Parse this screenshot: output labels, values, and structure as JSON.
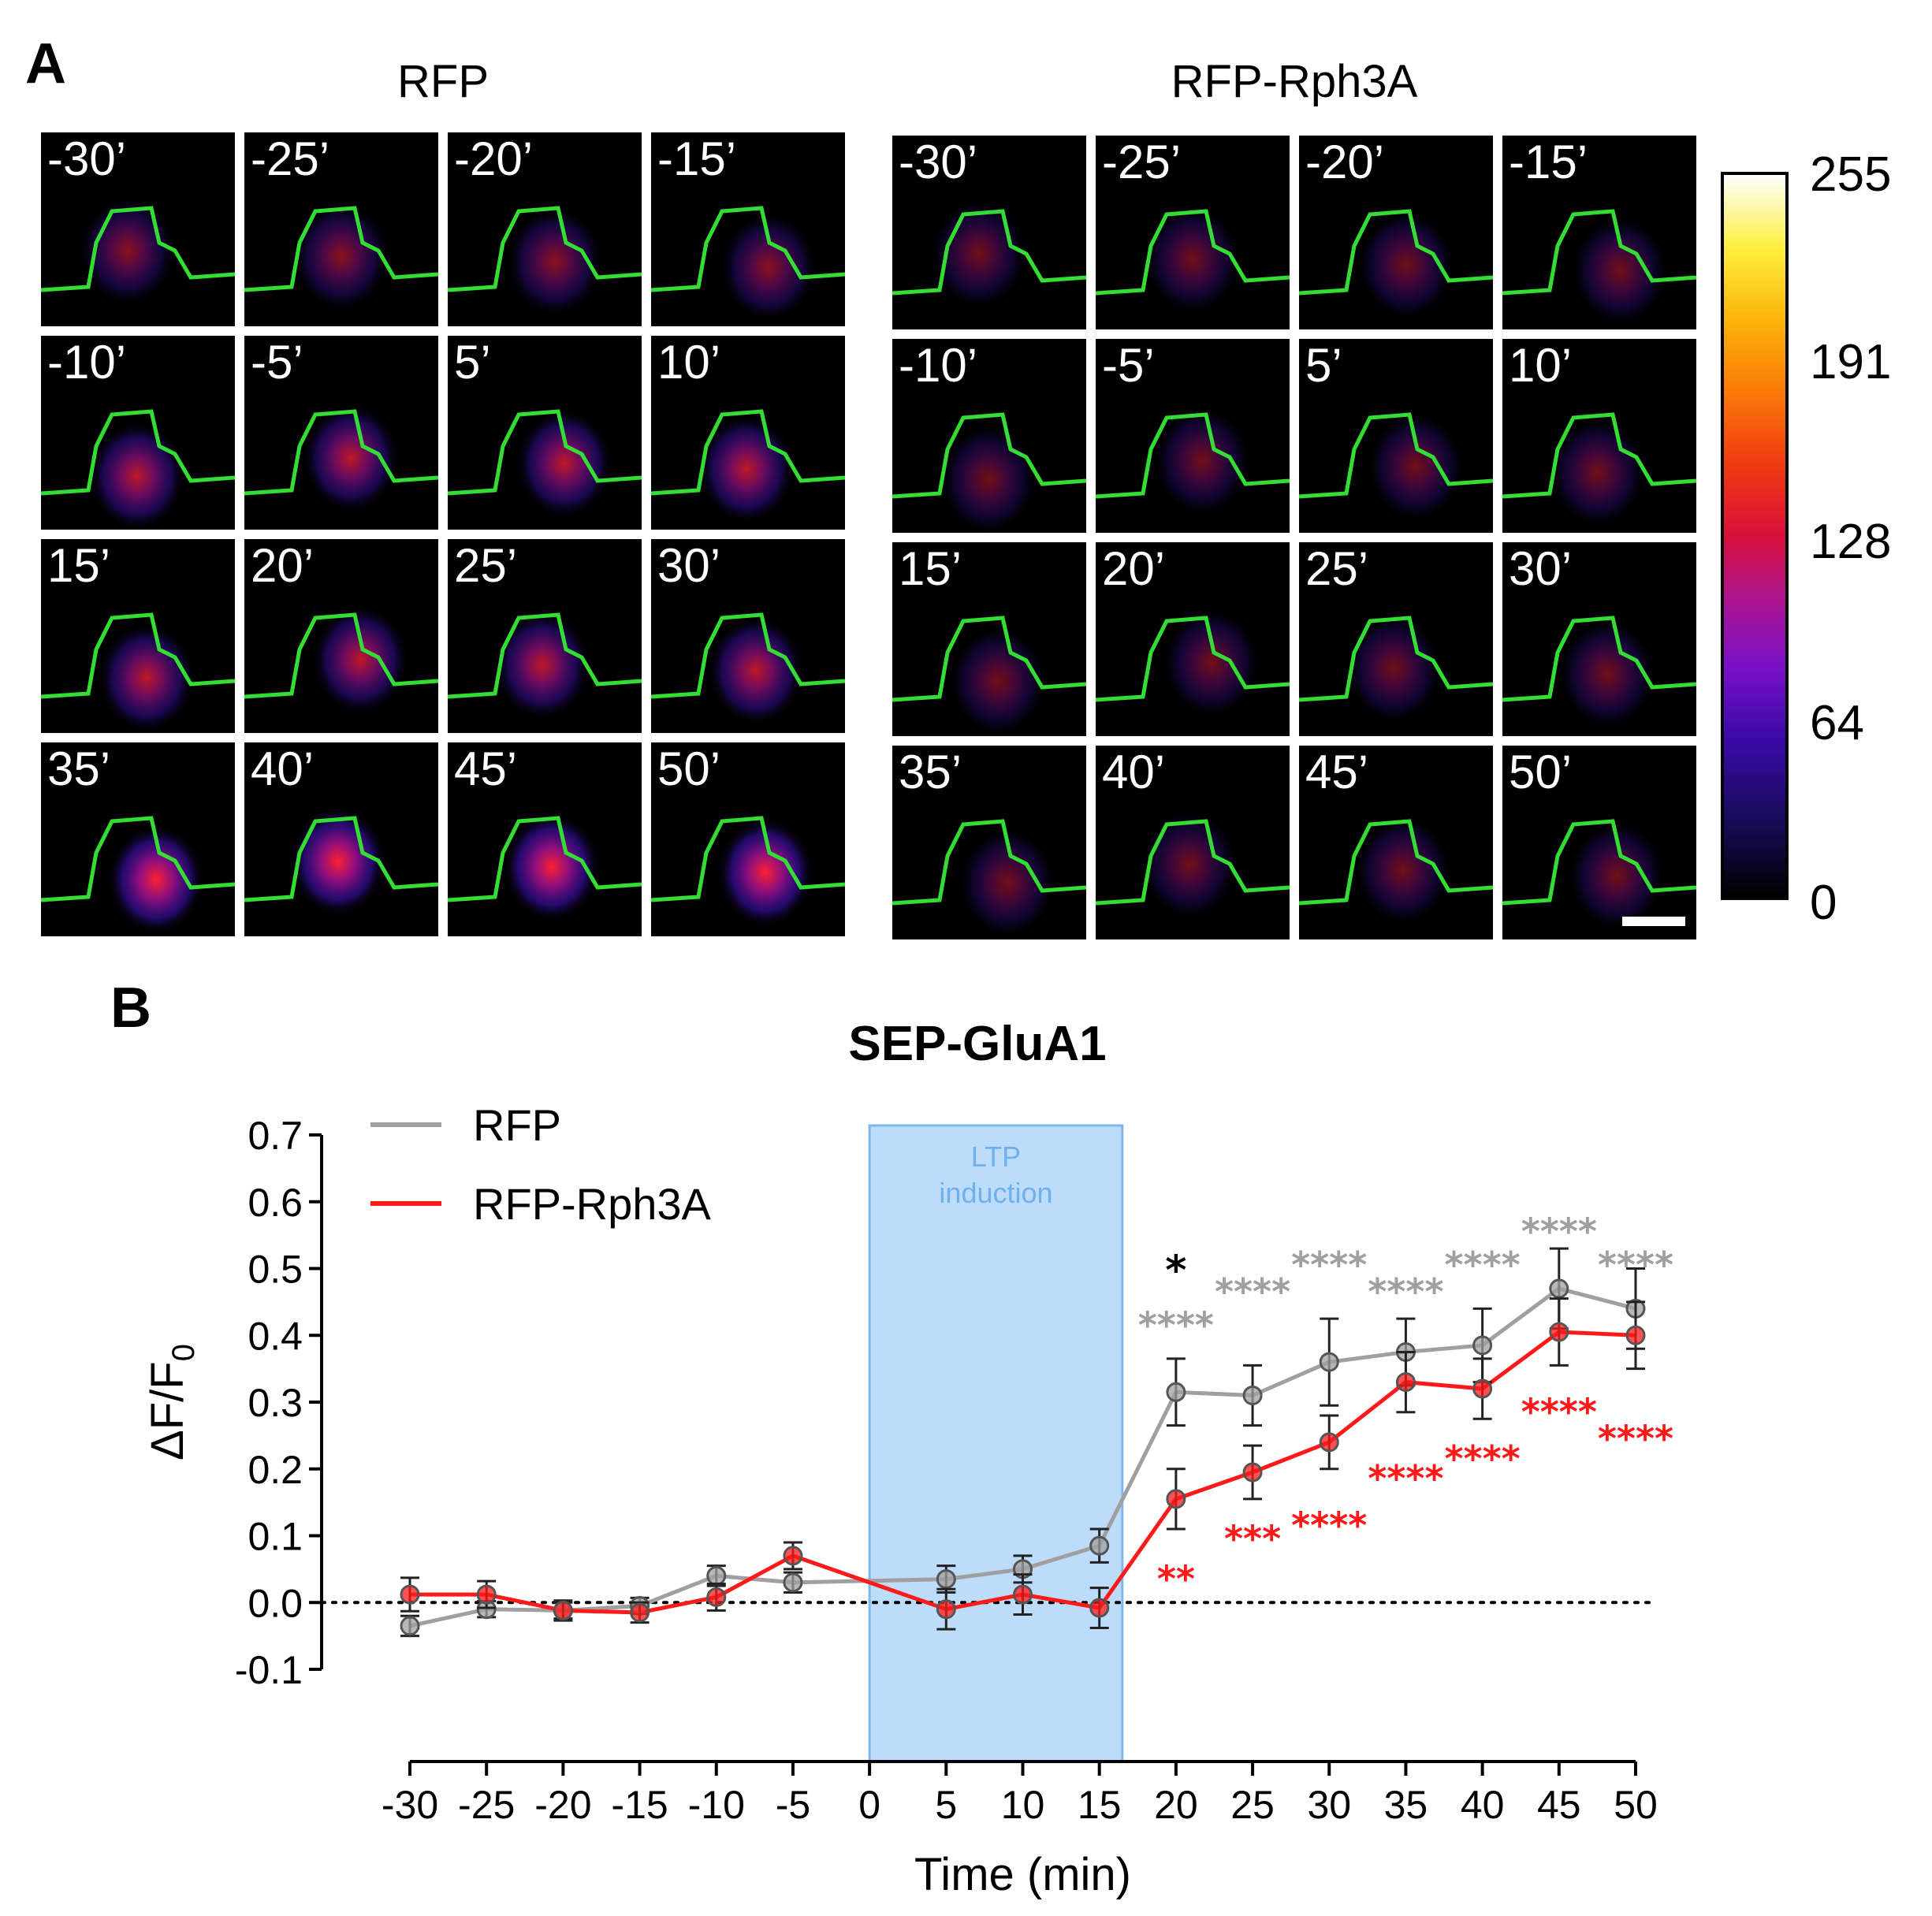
{
  "panel_a": {
    "letter": "A",
    "groups": [
      {
        "title": "RFP",
        "tiles": [
          "-30’",
          "-25’",
          "-20’",
          "-15’",
          "-10’",
          "-5’",
          "5’",
          "10’",
          "15’",
          "20’",
          "25’",
          "30’",
          "35’",
          "40’",
          "45’",
          "50’"
        ]
      },
      {
        "title": "RFP-Rph3A",
        "tiles": [
          "-30’",
          "-25’",
          "-20’",
          "-15’",
          "-10’",
          "-5’",
          "5’",
          "10’",
          "15’",
          "20’",
          "25’",
          "30’",
          "35’",
          "40’",
          "45’",
          "50’"
        ]
      }
    ],
    "colorbar": {
      "ticks": [
        "255",
        "191",
        "128",
        "64",
        "0"
      ]
    }
  },
  "panel_b": {
    "letter": "B"
  },
  "chart_data": {
    "type": "line",
    "title": "SEP-GluA1",
    "xlabel": "Time (min)",
    "ylabel": "ΔF/F",
    "ylabel_subscript": "0",
    "x": [
      -30,
      -25,
      -20,
      -15,
      -10,
      -5,
      5,
      10,
      15,
      20,
      25,
      30,
      35,
      40,
      45,
      50
    ],
    "x_tick_labels": [
      "-30",
      "-25",
      "-20",
      "-15",
      "-10",
      "-5",
      "0",
      "5",
      "10",
      "15",
      "20",
      "25",
      "30",
      "35",
      "40",
      "45",
      "50"
    ],
    "y_tick_labels": [
      "0.7",
      "0.6",
      "0.5",
      "0.4",
      "0.3",
      "0.2",
      "0.1",
      "0.0",
      "-0.1"
    ],
    "ylim": [
      -0.1,
      0.7
    ],
    "series": [
      {
        "name": "RFP",
        "color": "#a0a0a0",
        "values": [
          -0.035,
          -0.01,
          -0.012,
          -0.005,
          0.04,
          0.03,
          0.035,
          0.05,
          0.085,
          0.315,
          0.31,
          0.36,
          0.375,
          0.385,
          0.47,
          0.44
        ],
        "errors": [
          0.015,
          0.012,
          0.012,
          0.012,
          0.015,
          0.015,
          0.02,
          0.02,
          0.025,
          0.05,
          0.045,
          0.065,
          0.05,
          0.055,
          0.06,
          0.06
        ]
      },
      {
        "name": "RFP-Rph3A",
        "color": "#ff1a1a",
        "values": [
          0.012,
          0.012,
          -0.012,
          -0.015,
          0.008,
          0.07,
          -0.01,
          0.012,
          -0.008,
          0.155,
          0.195,
          0.24,
          0.33,
          0.32,
          0.405,
          0.4
        ],
        "errors": [
          0.025,
          0.02,
          0.015,
          0.015,
          0.02,
          0.02,
          0.03,
          0.03,
          0.03,
          0.045,
          0.04,
          0.04,
          0.045,
          0.045,
          0.05,
          0.05
        ]
      }
    ],
    "baseline": 0.0,
    "shaded_region": {
      "label_line1": "LTP",
      "label_line2": "induction",
      "x_start": 0,
      "x_end": 16.5,
      "color": "#bcdcfa",
      "border": "#7fb6ee",
      "text_color": "#6fb0ee"
    },
    "annotations": [
      {
        "text": "*",
        "x": 20,
        "color": "#000000",
        "side": "above",
        "level": 0.5
      },
      {
        "text": "****",
        "x": 20,
        "color": "#a0a0a0",
        "side": "above",
        "level": 0.42
      },
      {
        "text": "****",
        "x": 25,
        "color": "#a0a0a0",
        "side": "above",
        "level": 0.47
      },
      {
        "text": "****",
        "x": 30,
        "color": "#a0a0a0",
        "side": "above",
        "level": 0.51
      },
      {
        "text": "****",
        "x": 35,
        "color": "#a0a0a0",
        "side": "above",
        "level": 0.47
      },
      {
        "text": "****",
        "x": 40,
        "color": "#a0a0a0",
        "side": "above",
        "level": 0.51
      },
      {
        "text": "****",
        "x": 45,
        "color": "#a0a0a0",
        "side": "above",
        "level": 0.56
      },
      {
        "text": "****",
        "x": 50,
        "color": "#a0a0a0",
        "side": "above",
        "level": 0.51
      },
      {
        "text": "**",
        "x": 20,
        "color": "#ff1a1a",
        "side": "below",
        "level": 0.04
      },
      {
        "text": "***",
        "x": 25,
        "color": "#ff1a1a",
        "side": "below",
        "level": 0.1
      },
      {
        "text": "****",
        "x": 30,
        "color": "#ff1a1a",
        "side": "below",
        "level": 0.12
      },
      {
        "text": "****",
        "x": 35,
        "color": "#ff1a1a",
        "side": "below",
        "level": 0.19
      },
      {
        "text": "****",
        "x": 40,
        "color": "#ff1a1a",
        "side": "below",
        "level": 0.22
      },
      {
        "text": "****",
        "x": 45,
        "color": "#ff1a1a",
        "side": "below",
        "level": 0.29
      },
      {
        "text": "****",
        "x": 50,
        "color": "#ff1a1a",
        "side": "below",
        "level": 0.25
      }
    ],
    "legend_position": "top-left",
    "grid": false
  }
}
